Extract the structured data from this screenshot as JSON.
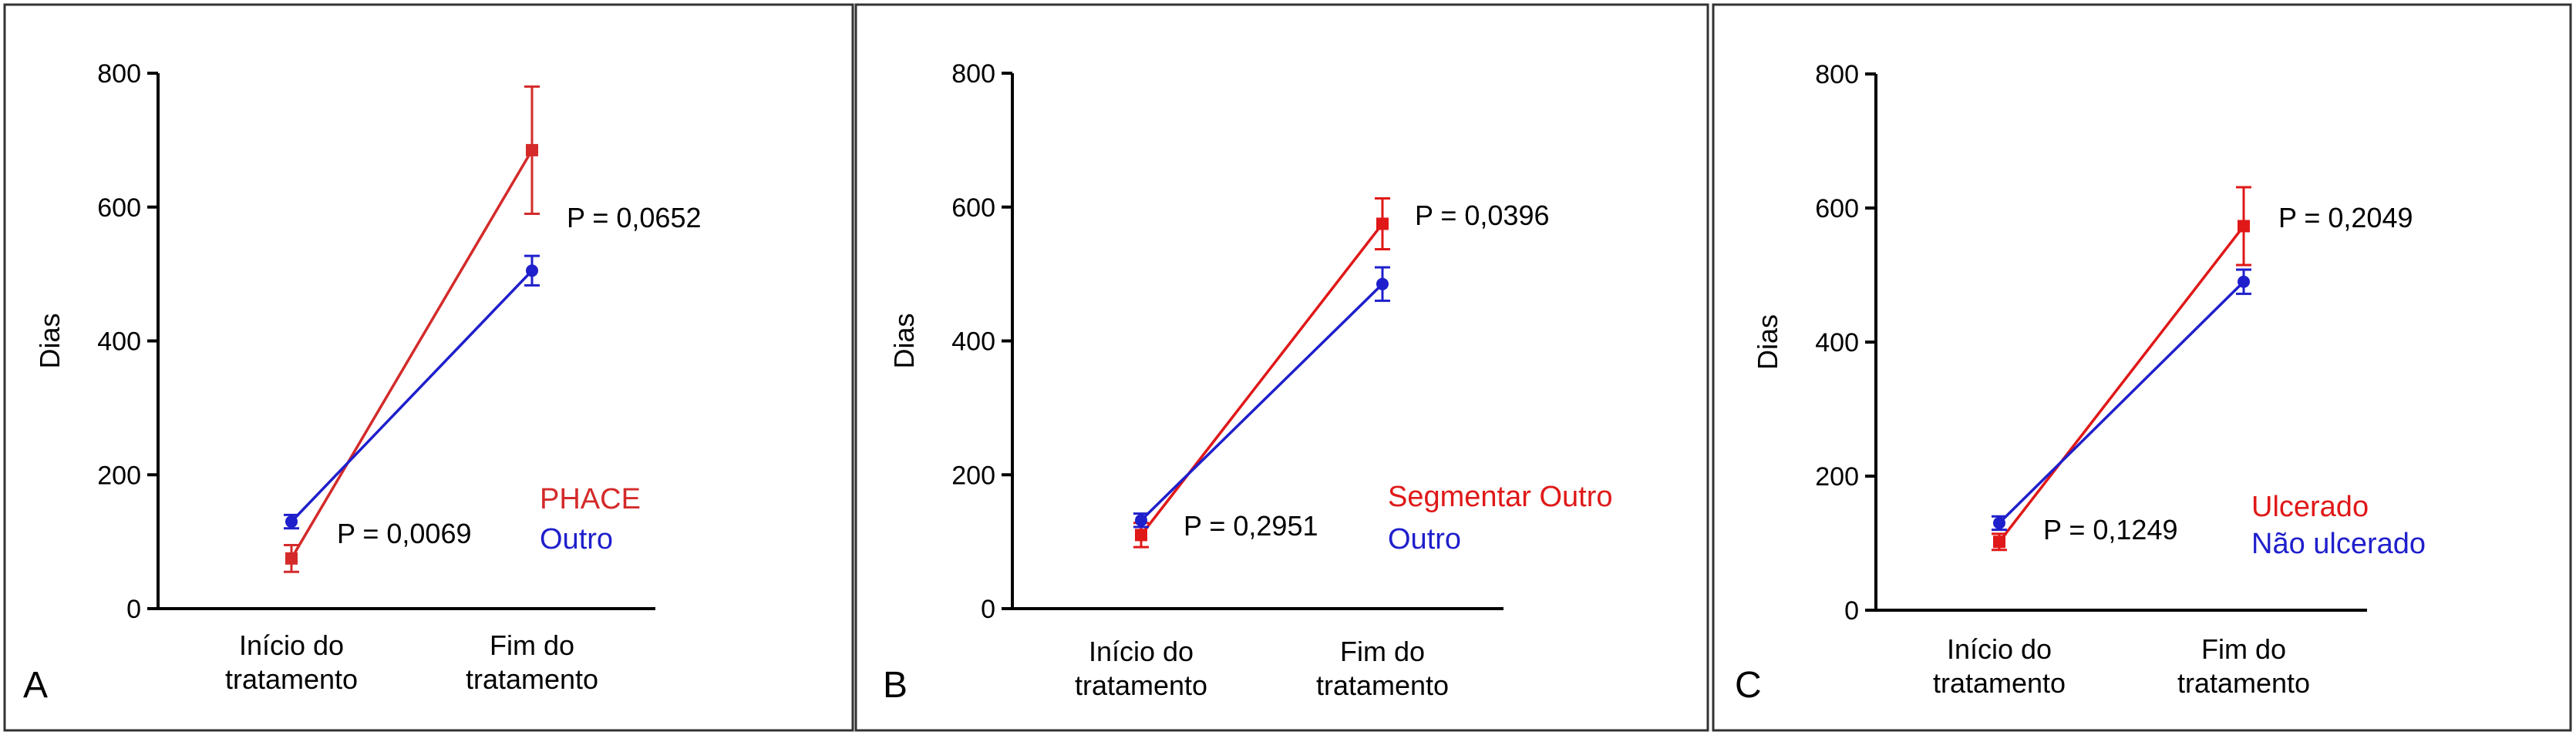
{
  "chart_data": [
    {
      "type": "line",
      "panel_letter": "A",
      "ylabel": "Dias",
      "xlabel": "",
      "ylim": [
        0,
        800
      ],
      "yticks": [
        0,
        200,
        400,
        600,
        800
      ],
      "categories": [
        "Início do\ntratamento",
        "Fim do\ntratamento"
      ],
      "series": [
        {
          "name": "PHACE",
          "color": "#d42a2a",
          "marker": "square",
          "values": [
            75,
            685
          ],
          "error": [
            20,
            95
          ]
        },
        {
          "name": "Outro",
          "color": "#1f1fcc",
          "marker": "circle",
          "values": [
            130,
            505
          ],
          "error": [
            10,
            22
          ]
        }
      ],
      "annotations": [
        {
          "text": "P = 0,0069",
          "at": "start"
        },
        {
          "text": "P = 0,0652",
          "at": "end"
        }
      ],
      "legend_position": "lower-right",
      "grid": false
    },
    {
      "type": "line",
      "panel_letter": "B",
      "ylabel": "Dias",
      "xlabel": "",
      "ylim": [
        0,
        800
      ],
      "yticks": [
        0,
        200,
        400,
        600,
        800
      ],
      "categories": [
        "Início do\ntratamento",
        "Fim do\ntratamento"
      ],
      "series": [
        {
          "name": "Segmentar Outro",
          "color": "#e01818",
          "marker": "square",
          "values": [
            110,
            575
          ],
          "error": [
            18,
            38
          ]
        },
        {
          "name": "Outro",
          "color": "#1f1fcc",
          "marker": "circle",
          "values": [
            132,
            485
          ],
          "error": [
            10,
            25
          ]
        }
      ],
      "annotations": [
        {
          "text": "P = 0,2951",
          "at": "start"
        },
        {
          "text": "P = 0,0396",
          "at": "end"
        }
      ],
      "legend_position": "lower-right",
      "grid": false
    },
    {
      "type": "line",
      "panel_letter": "C",
      "ylabel": "Dias",
      "xlabel": "",
      "ylim": [
        0,
        800
      ],
      "yticks": [
        0,
        200,
        400,
        600,
        800
      ],
      "categories": [
        "Início do\ntratamento",
        "Fim do\ntratamento"
      ],
      "series": [
        {
          "name": "Ulcerado",
          "color": "#e01818",
          "marker": "square",
          "values": [
            102,
            573
          ],
          "error": [
            12,
            58
          ]
        },
        {
          "name": "Não ulcerado",
          "color": "#1f1fcc",
          "marker": "circle",
          "values": [
            130,
            490
          ],
          "error": [
            10,
            18
          ]
        }
      ],
      "annotations": [
        {
          "text": "P = 0,1249",
          "at": "start"
        },
        {
          "text": "P = 0,2049",
          "at": "end"
        }
      ],
      "legend_position": "lower-right",
      "grid": false
    }
  ]
}
